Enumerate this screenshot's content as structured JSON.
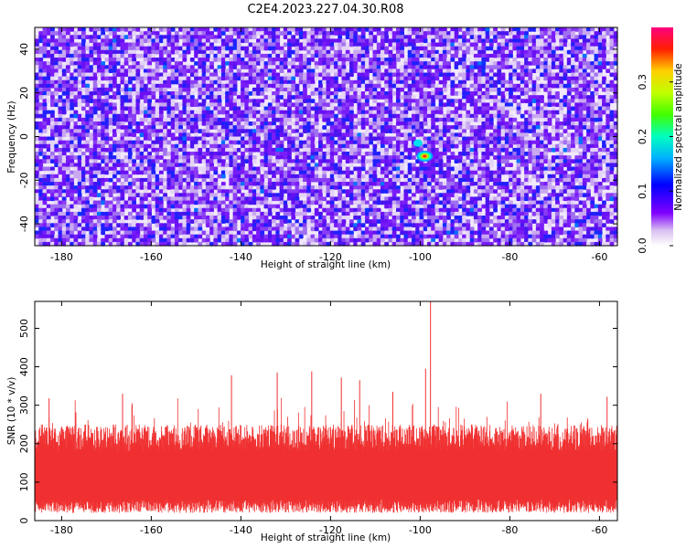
{
  "title": "C2E4.2023.227.04.30.R08",
  "chart_data": [
    {
      "type": "heatmap",
      "xlabel": "Height of straight line (km)",
      "ylabel": "Frequency (Hz)",
      "xlim": [
        -186,
        -56
      ],
      "ylim": [
        -50,
        50
      ],
      "xticks": [
        -180,
        -160,
        -140,
        -120,
        -100,
        -80,
        -60
      ],
      "yticks": [
        -40,
        -20,
        0,
        20,
        40
      ],
      "colorbar": {
        "label": "Normalized spectral amplitude",
        "range": [
          0,
          0.4
        ],
        "ticks": [
          0.0,
          0.1,
          0.2,
          0.3
        ]
      },
      "hotspot": {
        "x": -99,
        "y": -9,
        "amplitude": 0.3
      }
    },
    {
      "type": "line",
      "xlabel": "Height of straight line (km)",
      "ylabel": "SNR (10 * v/v)",
      "xlim": [
        -186,
        -56
      ],
      "ylim": [
        0,
        570
      ],
      "xticks": [
        -180,
        -160,
        -140,
        -120,
        -100,
        -80,
        -60
      ],
      "yticks": [
        0,
        100,
        200,
        300,
        400,
        500
      ],
      "series_color": "#f03030",
      "noise_band": {
        "low": 40,
        "high": 210
      },
      "peaks": [
        {
          "x": -97.7,
          "y": 570
        },
        {
          "x": -98.8,
          "y": 395
        },
        {
          "x": -124.2,
          "y": 388
        },
        {
          "x": -131.9,
          "y": 385
        },
        {
          "x": -142.1,
          "y": 378
        },
        {
          "x": -117.6,
          "y": 372
        },
        {
          "x": -113.5,
          "y": 365
        },
        {
          "x": -106.1,
          "y": 335
        },
        {
          "x": -182.8,
          "y": 318
        },
        {
          "x": -166.4,
          "y": 330
        },
        {
          "x": -73.1,
          "y": 330
        },
        {
          "x": -58.3,
          "y": 322
        }
      ]
    }
  ]
}
